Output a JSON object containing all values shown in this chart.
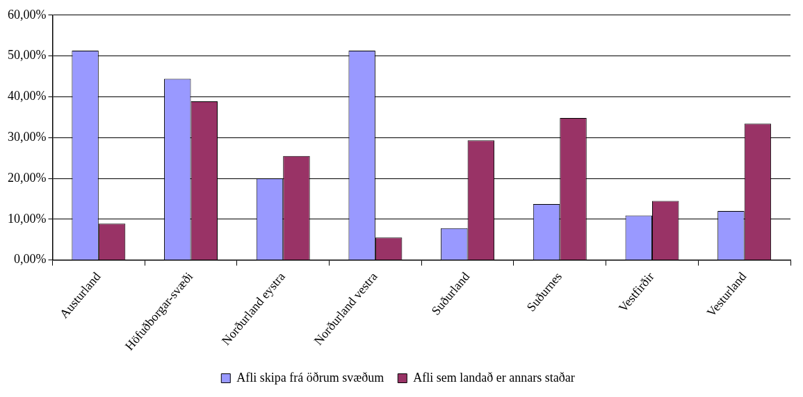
{
  "chart_data": {
    "type": "bar",
    "categories": [
      "Austurland",
      "Höfuðborgar-svæði",
      "Norðurland eystra",
      "Norðurland vestra",
      "Suðurland",
      "Suðurnes",
      "Vestfirðir",
      "Vesturland"
    ],
    "series": [
      {
        "name": "Afli skipa frá öðrum svæðum",
        "color": "#9999ff",
        "values": [
          51.3,
          44.4,
          20.0,
          51.3,
          7.8,
          13.7,
          10.9,
          12.0
        ]
      },
      {
        "name": "Afli sem landað er annars staðar",
        "color": "#993366",
        "values": [
          8.9,
          38.9,
          25.5,
          5.5,
          29.3,
          34.8,
          14.5,
          33.4
        ]
      }
    ],
    "ylim": [
      0,
      60
    ],
    "yticks": [
      {
        "value": 0,
        "label": "0,00%"
      },
      {
        "value": 10,
        "label": "10,00%"
      },
      {
        "value": 20,
        "label": "20,00%"
      },
      {
        "value": 30,
        "label": "30,00%"
      },
      {
        "value": 40,
        "label": "40,00%"
      },
      {
        "value": 50,
        "label": "50,00%"
      },
      {
        "value": 60,
        "label": "60,00%"
      }
    ],
    "grid": "y",
    "legend": "bottom"
  }
}
